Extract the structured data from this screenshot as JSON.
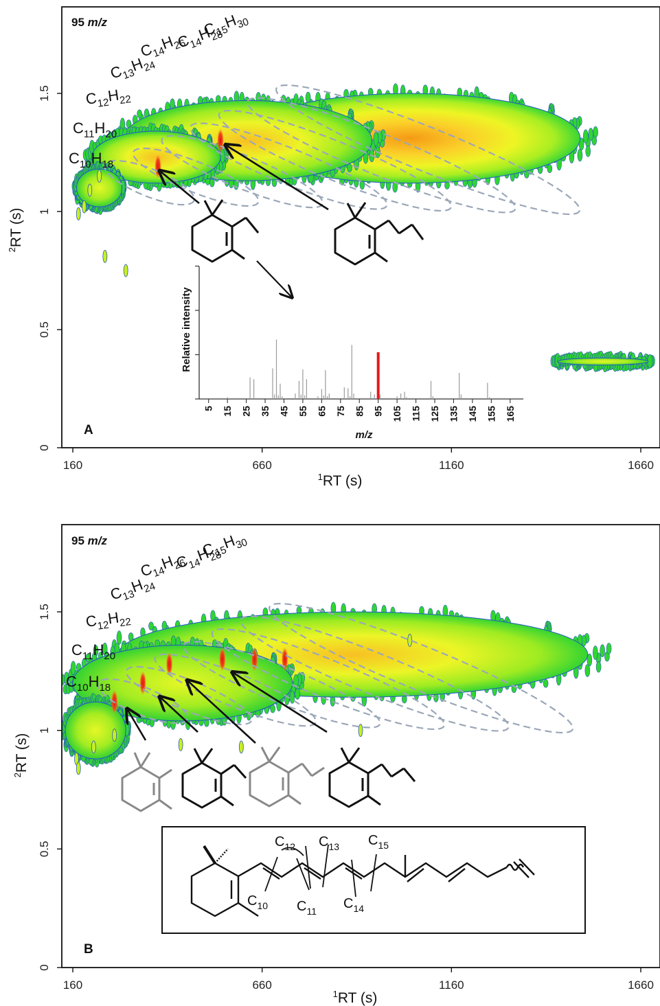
{
  "colors": {
    "low": "#2fd630",
    "mid": "#c8f21a",
    "high_mid": "#fdf22a",
    "high": "#f7a417",
    "peak": "#e5231a",
    "edge": "#2b55c8",
    "ellipse": "#9aa7b8",
    "spectrum_line": "#9a9a9a",
    "spectrum_highlight": "#e41a1c"
  },
  "chart_data": [
    {
      "type": "heatmap",
      "panel": "A",
      "label": "A",
      "ion_label": "95 m/z",
      "ion_value": "95",
      "ion_unit": "m/z",
      "xlabel_sup": "1",
      "xlabel_text": "RT (s)",
      "ylabel_sup": "2",
      "ylabel_text": "RT (s)",
      "x_ticks": [
        "160",
        "660",
        "1160",
        "1660"
      ],
      "x_tick_values": [
        160,
        660,
        1160,
        1660
      ],
      "y_ticks": [
        "0",
        "0.5",
        "1",
        "1.5"
      ],
      "y_tick_values": [
        0,
        0.5,
        1,
        1.5
      ],
      "xlim": [
        130,
        1680
      ],
      "ylim": [
        0,
        1.88
      ],
      "formulas": [
        {
          "c": "10",
          "h": "18"
        },
        {
          "c": "11",
          "h": "20"
        },
        {
          "c": "12",
          "h": "22"
        },
        {
          "c": "13",
          "h": "24"
        },
        {
          "c": "14",
          "h": "26"
        },
        {
          "c": "14",
          "h": "28"
        },
        {
          "c": "15",
          "h": "30"
        }
      ],
      "blobs": [
        {
          "cx": 1050,
          "cy": 1.31,
          "rx": 450,
          "ry": 0.19,
          "level": 0.75
        },
        {
          "cx": 620,
          "cy": 1.3,
          "rx": 330,
          "ry": 0.17,
          "level": 0.55
        },
        {
          "cx": 380,
          "cy": 1.23,
          "rx": 170,
          "ry": 0.11,
          "level": 0.35
        },
        {
          "cx": 230,
          "cy": 1.1,
          "rx": 60,
          "ry": 0.08,
          "level": 0.2
        },
        {
          "cx": 1560,
          "cy": 0.365,
          "rx": 120,
          "ry": 0.015,
          "level": 0.15
        }
      ],
      "peaks": [
        {
          "x": 385,
          "y": 1.19
        },
        {
          "x": 550,
          "y": 1.3
        }
      ],
      "inset_spectrum": {
        "type": "bar",
        "ylabel": "Relative intensity",
        "xlabel": "m/z",
        "x_ticks": [
          "5",
          "15",
          "25",
          "35",
          "45",
          "55",
          "65",
          "75",
          "85",
          "95",
          "105",
          "115",
          "125",
          "135",
          "145",
          "155",
          "165"
        ],
        "xlim": [
          0,
          172
        ],
        "ylim": [
          0,
          100
        ],
        "highlight_mz": 95,
        "peaks": [
          {
            "mz": 15,
            "value": 2
          },
          {
            "mz": 27,
            "value": 24
          },
          {
            "mz": 29,
            "value": 22
          },
          {
            "mz": 39,
            "value": 34
          },
          {
            "mz": 40,
            "value": 5
          },
          {
            "mz": 41,
            "value": 66
          },
          {
            "mz": 42,
            "value": 4
          },
          {
            "mz": 43,
            "value": 17
          },
          {
            "mz": 44,
            "value": 3
          },
          {
            "mz": 51,
            "value": 6
          },
          {
            "mz": 53,
            "value": 20
          },
          {
            "mz": 54,
            "value": 5
          },
          {
            "mz": 55,
            "value": 33
          },
          {
            "mz": 56,
            "value": 4
          },
          {
            "mz": 57,
            "value": 22
          },
          {
            "mz": 63,
            "value": 3
          },
          {
            "mz": 65,
            "value": 11
          },
          {
            "mz": 66,
            "value": 4
          },
          {
            "mz": 67,
            "value": 32
          },
          {
            "mz": 68,
            "value": 3
          },
          {
            "mz": 69,
            "value": 6
          },
          {
            "mz": 77,
            "value": 13
          },
          {
            "mz": 79,
            "value": 12
          },
          {
            "mz": 80,
            "value": 3
          },
          {
            "mz": 81,
            "value": 60
          },
          {
            "mz": 82,
            "value": 6
          },
          {
            "mz": 91,
            "value": 8
          },
          {
            "mz": 93,
            "value": 5
          },
          {
            "mz": 95,
            "value": 52
          },
          {
            "mz": 96,
            "value": 5
          },
          {
            "mz": 105,
            "value": 3
          },
          {
            "mz": 107,
            "value": 6
          },
          {
            "mz": 109,
            "value": 8
          },
          {
            "mz": 110,
            "value": 2
          },
          {
            "mz": 123,
            "value": 20
          },
          {
            "mz": 124,
            "value": 3
          },
          {
            "mz": 138,
            "value": 29
          },
          {
            "mz": 139,
            "value": 5
          },
          {
            "mz": 153,
            "value": 18
          },
          {
            "mz": 154,
            "value": 2
          }
        ]
      }
    },
    {
      "type": "heatmap",
      "panel": "B",
      "label": "B",
      "ion_label": "95 m/z",
      "ion_value": "95",
      "ion_unit": "m/z",
      "xlabel_sup": "1",
      "xlabel_text": "RT (s)",
      "ylabel_sup": "2",
      "ylabel_text": "RT (s)",
      "x_ticks": [
        "160",
        "660",
        "1160",
        "1660"
      ],
      "x_tick_values": [
        160,
        660,
        1160,
        1660
      ],
      "y_ticks": [
        "0",
        "0.5",
        "1",
        "1.5"
      ],
      "y_tick_values": [
        0,
        0.5,
        1,
        1.5
      ],
      "xlim": [
        130,
        1680
      ],
      "ylim": [
        0,
        1.88
      ],
      "formulas": [
        {
          "c": "10",
          "h": "18"
        },
        {
          "c": "11",
          "h": "20"
        },
        {
          "c": "12",
          "h": "22"
        },
        {
          "c": "13",
          "h": "24"
        },
        {
          "c": "14",
          "h": "26"
        },
        {
          "c": "14",
          "h": "28"
        },
        {
          "c": "15",
          "h": "30"
        }
      ],
      "blobs": [
        {
          "cx": 900,
          "cy": 1.32,
          "rx": 620,
          "ry": 0.18,
          "level": 0.32
        },
        {
          "cx": 450,
          "cy": 1.2,
          "rx": 290,
          "ry": 0.16,
          "level": 0.28
        },
        {
          "cx": 220,
          "cy": 1.0,
          "rx": 80,
          "ry": 0.12,
          "level": 0.15
        }
      ],
      "peaks": [
        {
          "x": 270,
          "y": 1.12
        },
        {
          "x": 345,
          "y": 1.2
        },
        {
          "x": 415,
          "y": 1.28
        },
        {
          "x": 555,
          "y": 1.3
        },
        {
          "x": 640,
          "y": 1.3
        },
        {
          "x": 720,
          "y": 1.3
        }
      ],
      "retinoid_labels": [
        {
          "c": "10"
        },
        {
          "c": "11"
        },
        {
          "c": "12"
        },
        {
          "c": "13"
        },
        {
          "c": "14"
        },
        {
          "c": "15"
        }
      ]
    }
  ]
}
